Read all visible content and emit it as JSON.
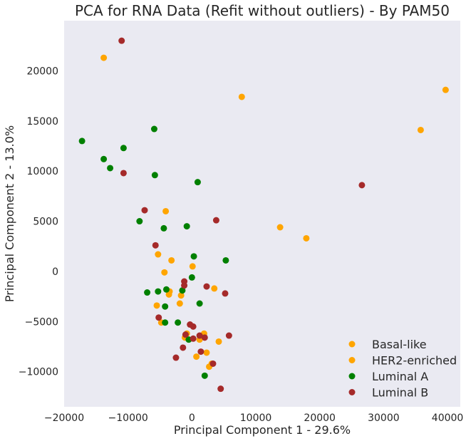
{
  "chart_data": {
    "type": "scatter",
    "title": "PCA for RNA Data (Refit without outliers) - By PAM50",
    "xlabel": "Principal Component 1 - 29.6%",
    "ylabel": "Principal Component 2 - 13.0%",
    "xlim": [
      -20000,
      42000
    ],
    "ylim": [
      -13500,
      25000
    ],
    "xticks": [
      -20000,
      -10000,
      0,
      10000,
      20000,
      30000,
      40000
    ],
    "yticks": [
      -10000,
      -5000,
      0,
      5000,
      10000,
      15000,
      20000
    ],
    "grid": false,
    "background": "#eaeaf2",
    "legend_position": "lower-right",
    "series": [
      {
        "name": "Basal-like",
        "color": "#ffa500",
        "points": [
          [
            -13800,
            21300
          ],
          [
            7800,
            17400
          ],
          [
            39700,
            18100
          ],
          [
            35800,
            14100
          ],
          [
            -4100,
            6000
          ],
          [
            13800,
            4400
          ],
          [
            17900,
            3300
          ],
          [
            -5300,
            1700
          ],
          [
            -3200,
            1100
          ],
          [
            100,
            500
          ],
          [
            -4300,
            -100
          ],
          [
            -3500,
            -2000
          ],
          [
            -3600,
            -2300
          ],
          [
            -1700,
            -2400
          ],
          [
            3500,
            -1700
          ],
          [
            -5500,
            -3400
          ],
          [
            -1900,
            -3200
          ],
          [
            -4800,
            -5100
          ],
          [
            1900,
            -6200
          ],
          [
            4200,
            -7000
          ],
          [
            -800,
            -6200
          ],
          [
            -1100,
            -6600
          ],
          [
            1200,
            -6800
          ],
          [
            2300,
            -8100
          ],
          [
            700,
            -8500
          ],
          [
            2700,
            -9500
          ],
          [
            3100,
            -9200
          ]
        ]
      },
      {
        "name": "HER2-enriched",
        "color": "#ffa500",
        "points": []
      },
      {
        "name": "Luminal A",
        "color": "#008000",
        "points": [
          [
            -17200,
            13000
          ],
          [
            -5900,
            14200
          ],
          [
            -13800,
            11200
          ],
          [
            -10700,
            12300
          ],
          [
            -12800,
            10300
          ],
          [
            -5800,
            9600
          ],
          [
            900,
            8900
          ],
          [
            -8200,
            5000
          ],
          [
            -800,
            4500
          ],
          [
            -4400,
            4300
          ],
          [
            300,
            1500
          ],
          [
            5300,
            1100
          ],
          [
            0,
            -600
          ],
          [
            -7000,
            -2100
          ],
          [
            -5300,
            -2000
          ],
          [
            -4000,
            -1800
          ],
          [
            -1500,
            -1900
          ],
          [
            -4200,
            -3500
          ],
          [
            1200,
            -3200
          ],
          [
            -2200,
            -5100
          ],
          [
            -4200,
            -5100
          ],
          [
            -500,
            -6800
          ],
          [
            2000,
            -10400
          ]
        ]
      },
      {
        "name": "Luminal B",
        "color": "#a52a2a",
        "points": [
          [
            -11000,
            23000
          ],
          [
            -10700,
            9800
          ],
          [
            26600,
            8600
          ],
          [
            -7400,
            6100
          ],
          [
            3800,
            5100
          ],
          [
            -5700,
            2600
          ],
          [
            -1200,
            -1000
          ],
          [
            -1200,
            -1400
          ],
          [
            2300,
            -1500
          ],
          [
            5200,
            -2200
          ],
          [
            -5200,
            -4600
          ],
          [
            -300,
            -5300
          ],
          [
            200,
            -5500
          ],
          [
            -1000,
            -6300
          ],
          [
            200,
            -6700
          ],
          [
            1200,
            -6400
          ],
          [
            2000,
            -6600
          ],
          [
            5800,
            -6400
          ],
          [
            -1400,
            -7600
          ],
          [
            1400,
            -8000
          ],
          [
            -2500,
            -8600
          ],
          [
            3300,
            -9200
          ],
          [
            4500,
            -11700
          ]
        ]
      }
    ]
  }
}
